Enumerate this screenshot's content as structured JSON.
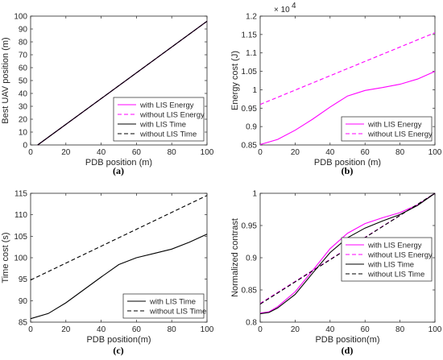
{
  "chart_data": [
    {
      "id": "a",
      "type": "line",
      "caption": "(a)",
      "xlabel": "PDB position (m)",
      "ylabel": "Best UAV position (m)",
      "xlim": [
        0,
        100
      ],
      "ylim": [
        0,
        100
      ],
      "xticks": [
        0,
        20,
        40,
        60,
        80,
        100
      ],
      "yticks": [
        0,
        10,
        20,
        30,
        40,
        50,
        60,
        70,
        80,
        90,
        100
      ],
      "xtick_labels": [
        "0",
        "20",
        "40",
        "60",
        "80",
        "100"
      ],
      "ytick_labels": [
        "0",
        "10",
        "20",
        "30",
        "40",
        "50",
        "60",
        "70",
        "80",
        "90",
        "100"
      ],
      "legend_position": "bottom-right",
      "series": [
        {
          "name": "with LIS Energy",
          "color": "#ff00ff",
          "dash": "solid",
          "x": [
            4,
            100
          ],
          "y": [
            0,
            96
          ]
        },
        {
          "name": "without LIS Energy",
          "color": "#ff00ff",
          "dash": "dashed",
          "x": [
            4,
            100
          ],
          "y": [
            0,
            96
          ]
        },
        {
          "name": "with LIS Time",
          "color": "#000000",
          "dash": "solid",
          "x": [
            4,
            100
          ],
          "y": [
            0,
            96
          ]
        },
        {
          "name": "without LIS Time",
          "color": "#000000",
          "dash": "dashed",
          "x": [
            4,
            100
          ],
          "y": [
            0,
            96
          ]
        }
      ]
    },
    {
      "id": "b",
      "type": "line",
      "caption": "(b)",
      "xlabel": "PDB position (m)",
      "ylabel": "Energy cost (J)",
      "exponent_label": "× 10",
      "exponent_power": "4",
      "xlim": [
        0,
        100
      ],
      "ylim": [
        0.85,
        1.2
      ],
      "xticks": [
        0,
        20,
        40,
        60,
        80,
        100
      ],
      "yticks": [
        0.85,
        0.9,
        0.95,
        1.0,
        1.05,
        1.1,
        1.15,
        1.2
      ],
      "xtick_labels": [
        "0",
        "20",
        "40",
        "60",
        "80",
        "100"
      ],
      "ytick_labels": [
        "0.85",
        "0.9",
        "0.95",
        "1",
        "1.05",
        "1.1",
        "1.15",
        "1.2"
      ],
      "legend_position": "bottom-right",
      "series": [
        {
          "name": "with LIS Energy",
          "color": "#ff00ff",
          "dash": "solid",
          "x": [
            0,
            10,
            20,
            30,
            40,
            50,
            60,
            70,
            80,
            90,
            100
          ],
          "y": [
            0.851,
            0.865,
            0.89,
            0.92,
            0.953,
            0.983,
            0.998,
            1.006,
            1.015,
            1.029,
            1.05
          ]
        },
        {
          "name": "without LIS Energy",
          "color": "#ff00ff",
          "dash": "dashed",
          "x": [
            0,
            100
          ],
          "y": [
            0.96,
            1.155
          ]
        }
      ]
    },
    {
      "id": "c",
      "type": "line",
      "caption": "(c)",
      "xlabel": "PDB position(m)",
      "ylabel": "Time cost (s)",
      "xlim": [
        0,
        100
      ],
      "ylim": [
        85,
        115
      ],
      "xticks": [
        0,
        20,
        40,
        60,
        80,
        100
      ],
      "yticks": [
        85,
        90,
        95,
        100,
        105,
        110,
        115
      ],
      "xtick_labels": [
        "0",
        "20",
        "40",
        "60",
        "80",
        "100"
      ],
      "ytick_labels": [
        "85",
        "90",
        "95",
        "100",
        "105",
        "110",
        "115"
      ],
      "legend_position": "bottom-right",
      "series": [
        {
          "name": "with LIS Time",
          "color": "#000000",
          "dash": "solid",
          "x": [
            0,
            10,
            20,
            30,
            40,
            50,
            60,
            70,
            80,
            90,
            100
          ],
          "y": [
            85.8,
            87.0,
            89.5,
            92.5,
            95.5,
            98.4,
            100.0,
            101.0,
            102.0,
            103.6,
            105.5
          ]
        },
        {
          "name": "without LIS Time",
          "color": "#000000",
          "dash": "dashed",
          "x": [
            0,
            100
          ],
          "y": [
            94.8,
            114.5
          ]
        }
      ]
    },
    {
      "id": "d",
      "type": "line",
      "caption": "(d)",
      "xlabel": "PDB position(m)",
      "ylabel": "Normalized contrast",
      "xlim": [
        0,
        100
      ],
      "ylim": [
        0.8,
        1.0
      ],
      "xticks": [
        0,
        20,
        40,
        60,
        80,
        100
      ],
      "yticks": [
        0.8,
        0.85,
        0.9,
        0.95,
        1.0
      ],
      "xtick_labels": [
        "0",
        "20",
        "40",
        "60",
        "80",
        "100"
      ],
      "ytick_labels": [
        "0.8",
        "0.85",
        "0.9",
        "0.95",
        "1"
      ],
      "legend_position": "right",
      "series": [
        {
          "name": "with LIS Energy",
          "color": "#ff00ff",
          "dash": "solid",
          "x": [
            0,
            5,
            10,
            20,
            30,
            40,
            50,
            60,
            70,
            80,
            90,
            100
          ],
          "y": [
            0.814,
            0.816,
            0.824,
            0.847,
            0.88,
            0.914,
            0.938,
            0.953,
            0.962,
            0.97,
            0.982,
            1.0
          ]
        },
        {
          "name": "without LIS Energy",
          "color": "#ff00ff",
          "dash": "dashed",
          "x": [
            0,
            100
          ],
          "y": [
            0.829,
            1.0
          ]
        },
        {
          "name": "with LIS Time",
          "color": "#000000",
          "dash": "solid",
          "x": [
            0,
            5,
            10,
            20,
            30,
            40,
            50,
            60,
            70,
            80,
            90,
            100
          ],
          "y": [
            0.813,
            0.815,
            0.822,
            0.843,
            0.876,
            0.908,
            0.931,
            0.946,
            0.957,
            0.967,
            0.981,
            1.0
          ]
        },
        {
          "name": "without LIS Time",
          "color": "#000000",
          "dash": "dashed",
          "x": [
            0,
            100
          ],
          "y": [
            0.828,
            1.0
          ]
        }
      ]
    }
  ]
}
